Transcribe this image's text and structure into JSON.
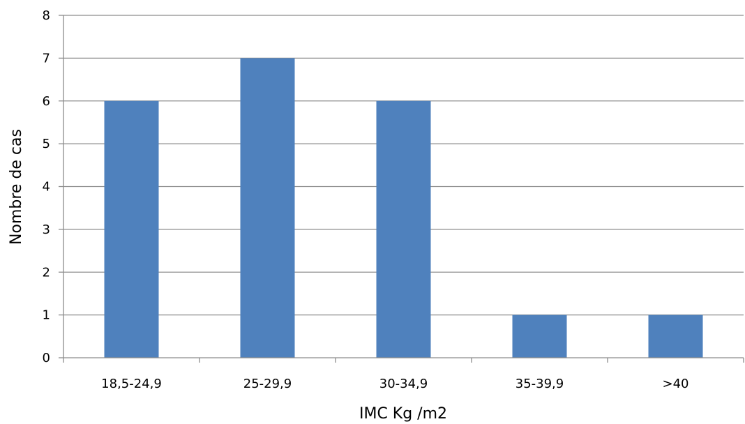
{
  "chart_data": {
    "type": "bar",
    "categories": [
      "18,5-24,9",
      "25-29,9",
      "30-34,9",
      "35-39,9",
      ">40"
    ],
    "values": [
      6,
      7,
      6,
      1,
      1
    ],
    "xlabel": "IMC Kg  /m2",
    "ylabel": "Nombre de cas",
    "ylim": [
      0,
      8
    ],
    "yticks": [
      "0",
      "1",
      "2",
      "3",
      "4",
      "5",
      "6",
      "7",
      "8"
    ],
    "grid": "horizontal",
    "legend": "none",
    "colors": {
      "bar": "#4F81BD",
      "grid": "#8C8C8C",
      "axis": "#8C8C8C",
      "text": "#000000",
      "background": "#FFFFFF"
    }
  }
}
